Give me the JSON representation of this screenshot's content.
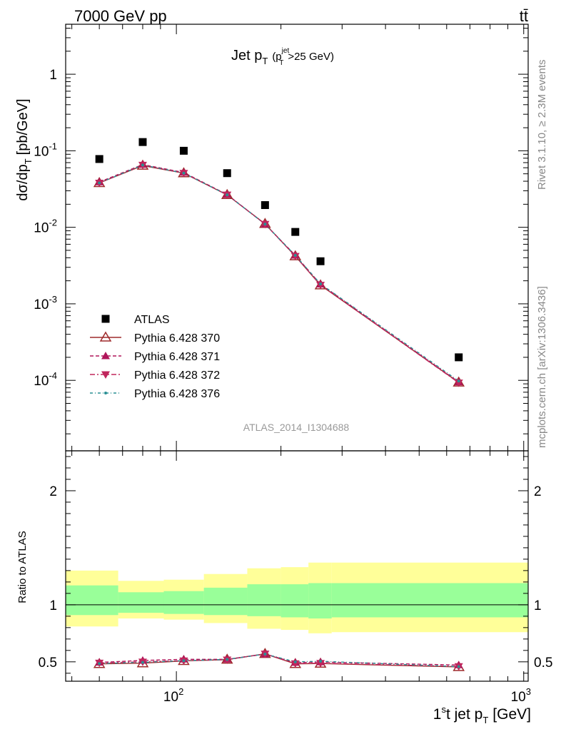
{
  "header": {
    "energy_label": "7000 GeV pp",
    "process_label": "tt̄"
  },
  "side_labels": {
    "rivet": "Rivet 3.1.10, ≥ 2.3M events",
    "mcplots": "mcplots.cern.ch [arXiv:1306.3436]"
  },
  "watermark": "ATLAS_2014_I1304688",
  "colors": {
    "data": "#000000",
    "p370": "#9e2a2b",
    "p371": "#b0155a",
    "p372": "#c0265c",
    "p376": "#2a8f94",
    "band_outer": "#ffff99",
    "band_inner": "#99ff99"
  },
  "chart_data": [
    {
      "type": "scatter",
      "title": "Jet p_T (p_T^jet>25 GeV)",
      "title_parts": {
        "main": "Jet p",
        "sub": "T",
        "paren_open": "(p",
        "sup": "jet",
        "sub2": "T",
        "paren_rest": ">25 GeV)"
      },
      "xlabel": "1st jet p_T [GeV]",
      "ylabel": "dσ/dp_T [pb/GeV]",
      "xscale": "log",
      "yscale": "log",
      "xlim": [
        48,
        1030
      ],
      "ylim": [
        1.2e-05,
        4.5
      ],
      "x_tick_labels": [
        "10^2",
        "10^3"
      ],
      "y_tick_labels": [
        "10^-4",
        "10^-3",
        "10^-2",
        "10^-1",
        "1"
      ],
      "legend_position": "bottom-left",
      "x": [
        60,
        80,
        105,
        140,
        180,
        220,
        260,
        650
      ],
      "series": [
        {
          "name": "ATLAS",
          "marker": "square",
          "values": [
            0.078,
            0.13,
            0.1,
            0.051,
            0.0195,
            0.0087,
            0.0036,
            0.0002
          ]
        },
        {
          "name": "Pythia 6.428 370",
          "marker": "open-triangle",
          "line": "solid",
          "values": [
            0.038,
            0.064,
            0.051,
            0.0265,
            0.0111,
            0.0042,
            0.00175,
            9.4e-05
          ]
        },
        {
          "name": "Pythia 6.428 371",
          "marker": "filled-triangle",
          "line": "dashed",
          "values": [
            0.039,
            0.066,
            0.052,
            0.0268,
            0.011,
            0.0043,
            0.0018,
            9.5e-05
          ]
        },
        {
          "name": "Pythia 6.428 372",
          "marker": "inverted-triangle",
          "line": "dashdot",
          "values": [
            0.038,
            0.065,
            0.051,
            0.0266,
            0.011,
            0.0042,
            0.00176,
            9.3e-05
          ]
        },
        {
          "name": "Pythia 6.428 376",
          "marker": "dot",
          "line": "dashdot",
          "values": [
            0.038,
            0.065,
            0.051,
            0.0266,
            0.011,
            0.0043,
            0.00182,
            9.8e-05
          ]
        }
      ]
    },
    {
      "type": "line",
      "ylabel": "Ratio to ATLAS",
      "xscale": "log",
      "xlim": [
        48,
        1030
      ],
      "ylim": [
        0.33,
        2.35
      ],
      "y_tick_labels": [
        "0.5",
        "1",
        "2"
      ],
      "x": [
        60,
        80,
        105,
        140,
        180,
        220,
        260,
        650
      ],
      "bands": {
        "edges": [
          48,
          68,
          92,
          120,
          160,
          200,
          240,
          280,
          1030
        ],
        "outer": [
          [
            0.81,
            1.3
          ],
          [
            0.88,
            1.21
          ],
          [
            0.87,
            1.22
          ],
          [
            0.84,
            1.27
          ],
          [
            0.79,
            1.32
          ],
          [
            0.78,
            1.33
          ],
          [
            0.75,
            1.37
          ],
          [
            0.76,
            1.37
          ]
        ],
        "inner": [
          [
            0.91,
            1.17
          ],
          [
            0.93,
            1.11
          ],
          [
            0.92,
            1.12
          ],
          [
            0.91,
            1.15
          ],
          [
            0.9,
            1.18
          ],
          [
            0.89,
            1.18
          ],
          [
            0.88,
            1.19
          ],
          [
            0.89,
            1.19
          ]
        ]
      },
      "series": [
        {
          "name": "Pythia 6.428 370",
          "values": [
            0.482,
            0.488,
            0.508,
            0.52,
            0.57,
            0.482,
            0.485,
            0.455
          ]
        },
        {
          "name": "Pythia 6.428 371",
          "values": [
            0.495,
            0.512,
            0.522,
            0.522,
            0.568,
            0.493,
            0.498,
            0.472
          ]
        },
        {
          "name": "Pythia 6.428 372",
          "values": [
            0.49,
            0.5,
            0.51,
            0.518,
            0.57,
            0.485,
            0.488,
            0.46
          ]
        },
        {
          "name": "Pythia 6.428 376",
          "values": [
            0.485,
            0.495,
            0.51,
            0.521,
            0.568,
            0.5,
            0.505,
            0.458
          ]
        }
      ]
    }
  ]
}
